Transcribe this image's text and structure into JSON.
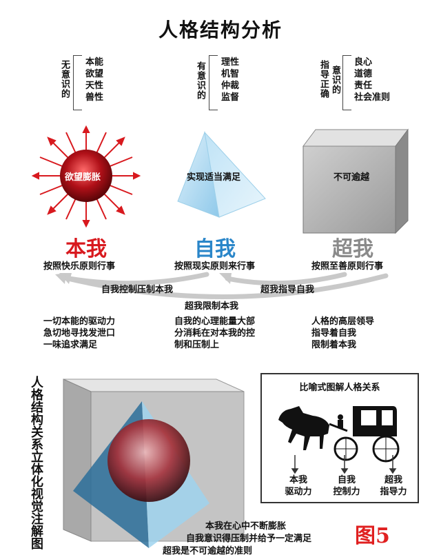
{
  "title": "人格结构分析",
  "top_labels": {
    "id": {
      "bracket_left": "无意识的",
      "items": [
        "本能",
        "欲望",
        "天性",
        "兽性"
      ]
    },
    "ego": {
      "bracket_left": "有意识的",
      "items": [
        "理性",
        "机智",
        "仲裁",
        "监督"
      ]
    },
    "superego": {
      "bracket_left1": "指导正确",
      "bracket_left2": "意识的",
      "items": [
        "良心",
        "道德",
        "责任",
        "社会准则"
      ]
    }
  },
  "shapes": {
    "id_label": "欲望膨胀",
    "ego_label": "实现适当满足",
    "superego_label": "不可逾越"
  },
  "names": {
    "id": "本我",
    "ego": "自我",
    "superego": "超我"
  },
  "colors": {
    "id": "#d8191e",
    "ego": "#2a86c9",
    "superego": "#8a8a8a"
  },
  "rules": {
    "id": "按照快乐原则行事",
    "ego": "按照现实原则来行事",
    "superego": "按照至善原则行事"
  },
  "arrows": {
    "ego_to_id": "自我控制压制本我",
    "superego_to_ego": "超我指导自我",
    "superego_to_id": "超我限制本我"
  },
  "descriptions": {
    "id": [
      "一切本能的驱动力",
      "急切地寻找发泄口",
      "一味追求满足"
    ],
    "ego": [
      "自我的心理能量大部",
      "分消耗在对本我的控",
      "制和压制上"
    ],
    "superego": [
      "人格的高层领导",
      "指导着自我",
      "限制着本我"
    ]
  },
  "side_caption": "人格结构关系立体化视觉注解图",
  "metaphor": {
    "title": "比喻式图解人格关系",
    "labels": [
      {
        "name": "本我",
        "role": "驱动力"
      },
      {
        "name": "自我",
        "role": "控制力"
      },
      {
        "name": "超我",
        "role": "指导力"
      }
    ]
  },
  "bottom_text": [
    "本我在心中不断膨胀",
    "自我意识得压制并给予一定满足",
    "超我是不可逾越的准则"
  ],
  "figure_number": "图5"
}
